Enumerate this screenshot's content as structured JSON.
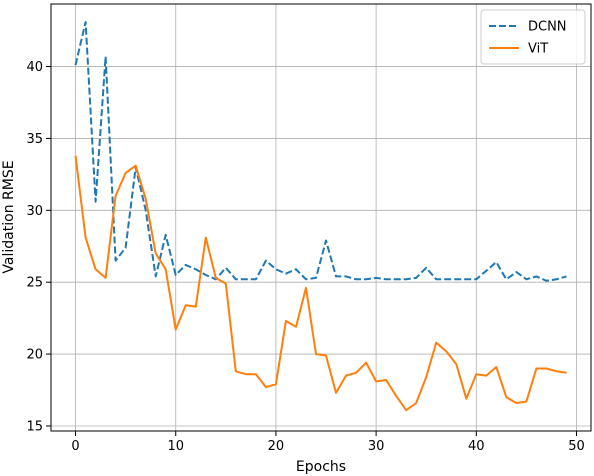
{
  "chart_data": {
    "type": "line",
    "xlabel": "Epochs",
    "ylabel": "Validation RMSE",
    "xlim": [
      -2.45,
      51.45
    ],
    "ylim": [
      14.65,
      44.35
    ],
    "xticks": [
      0,
      10,
      20,
      30,
      40,
      50
    ],
    "yticks": [
      15,
      20,
      25,
      30,
      35,
      40
    ],
    "grid": true,
    "legend_position": "top-right",
    "x": [
      0,
      1,
      2,
      3,
      4,
      5,
      6,
      7,
      8,
      9,
      10,
      11,
      12,
      13,
      14,
      15,
      16,
      17,
      18,
      19,
      20,
      21,
      22,
      23,
      24,
      25,
      26,
      27,
      28,
      29,
      30,
      31,
      32,
      33,
      34,
      35,
      36,
      37,
      38,
      39,
      40,
      41,
      42,
      43,
      44,
      45,
      46,
      47,
      48,
      49
    ],
    "series": [
      {
        "name": "DCNN",
        "color": "#1f77b4",
        "style": "dashed",
        "values": [
          40.1,
          43.1,
          30.6,
          40.7,
          26.5,
          27.4,
          33.0,
          30.0,
          25.4,
          28.3,
          25.5,
          26.2,
          25.9,
          25.5,
          25.2,
          26.0,
          25.2,
          25.2,
          25.2,
          26.5,
          25.9,
          25.6,
          25.9,
          25.2,
          25.3,
          27.9,
          25.4,
          25.4,
          25.2,
          25.2,
          25.3,
          25.2,
          25.2,
          25.2,
          25.3,
          26.0,
          25.2,
          25.2,
          25.2,
          25.2,
          25.2,
          25.8,
          26.4,
          25.2,
          25.7,
          25.2,
          25.4,
          25.1,
          25.2,
          25.4
        ]
      },
      {
        "name": "ViT",
        "color": "#ff7f0e",
        "style": "solid",
        "values": [
          33.8,
          28.1,
          25.9,
          25.3,
          31.0,
          32.6,
          33.1,
          30.8,
          27.0,
          25.9,
          21.7,
          23.4,
          23.3,
          28.1,
          25.3,
          24.9,
          18.8,
          18.6,
          18.6,
          17.7,
          17.9,
          22.3,
          21.9,
          24.6,
          20.0,
          19.9,
          17.3,
          18.5,
          18.7,
          19.4,
          18.1,
          18.2,
          17.1,
          16.1,
          16.6,
          18.4,
          20.8,
          20.2,
          19.3,
          16.9,
          18.6,
          18.5,
          19.1,
          17.0,
          16.6,
          16.7,
          19.0,
          19.0,
          18.8,
          18.7
        ]
      }
    ]
  }
}
